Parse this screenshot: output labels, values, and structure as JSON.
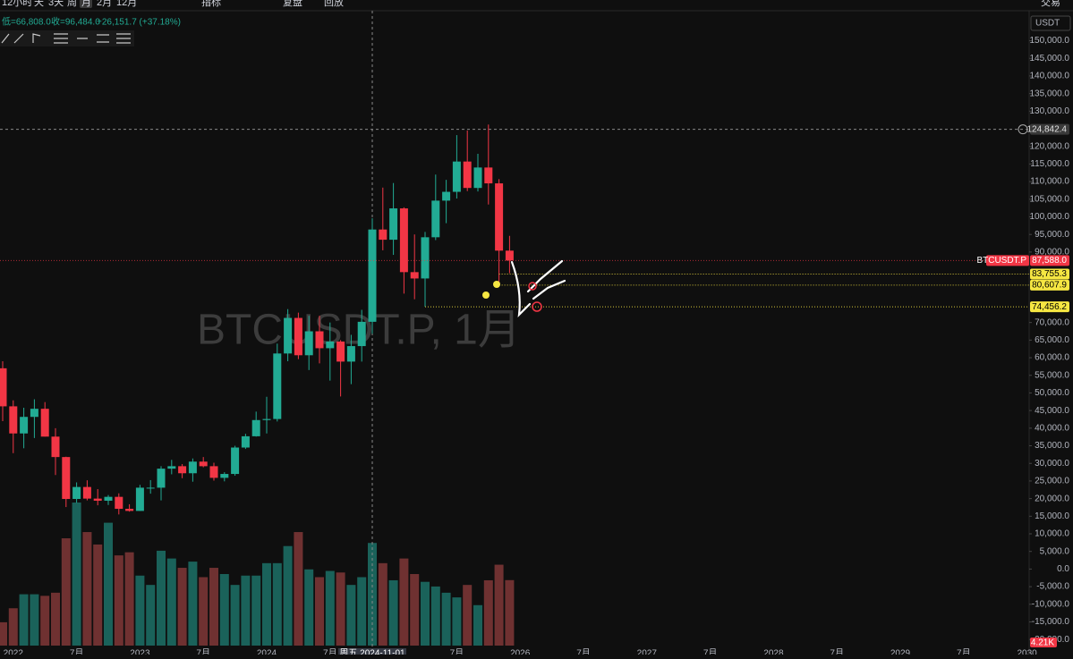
{
  "toolbar": {
    "intervals": [
      "12小时",
      "天",
      "3天",
      "周",
      "月",
      "2月",
      "12月"
    ],
    "indicators": "指标",
    "review": "复盘",
    "playback": "回放",
    "trade": "交易"
  },
  "legend": {
    "low": "低=66,808.0",
    "close": "收=96,484.0",
    "change": "+26,151.7 (+37.18%)"
  },
  "chart_data": {
    "type": "candlestick",
    "watermark": "BTCUSDT.P, 1月",
    "currency": "USDT",
    "x": [
      "2021-12",
      "2022-01",
      "2022-02",
      "2022-03",
      "2022-04",
      "2022-05",
      "2022-06",
      "2022-07",
      "2022-08",
      "2022-09",
      "2022-10",
      "2022-11",
      "2022-12",
      "2023-01",
      "2023-02",
      "2023-03",
      "2023-04",
      "2023-05",
      "2023-06",
      "2023-07",
      "2023-08",
      "2023-09",
      "2023-10",
      "2023-11",
      "2023-12",
      "2024-01",
      "2024-02",
      "2024-03",
      "2024-04",
      "2024-05",
      "2024-06",
      "2024-07",
      "2024-08",
      "2024-09",
      "2024-10",
      "2024-11",
      "2024-12",
      "2025-01",
      "2025-02",
      "2025-03",
      "2025-04",
      "2025-05",
      "2025-06",
      "2025-07",
      "2025-08",
      "2025-09",
      "2025-10",
      "2025-11",
      "2025-12"
    ],
    "open": [
      57000,
      46200,
      38500,
      43200,
      45500,
      37600,
      31800,
      19900,
      23300,
      20000,
      19400,
      20500,
      17100,
      16500,
      23100,
      23100,
      28500,
      29200,
      27200,
      30500,
      29200,
      25900,
      27000,
      34500,
      37700,
      42300,
      42600,
      61200,
      71300,
      60700,
      67500,
      62700,
      64600,
      58900,
      63300,
      70200,
      96400,
      93500,
      102400,
      84300,
      82500,
      94200,
      104600,
      107100,
      115700,
      108200,
      114000,
      109500,
      90400
    ],
    "high": [
      59000,
      47900,
      45800,
      48200,
      47400,
      40000,
      31900,
      24600,
      25200,
      22700,
      21000,
      21500,
      18400,
      23900,
      25250,
      29200,
      31000,
      29800,
      31400,
      31800,
      30200,
      27500,
      35000,
      38400,
      44700,
      48900,
      64000,
      73800,
      72800,
      71900,
      71900,
      70000,
      65000,
      66500,
      73600,
      99600,
      108300,
      109600,
      102700,
      95000,
      95700,
      112000,
      110500,
      123200,
      124500,
      117900,
      126200,
      110700,
      94600
    ],
    "low": [
      42000,
      32900,
      34300,
      37200,
      37600,
      26700,
      17600,
      18800,
      19500,
      18100,
      18200,
      15500,
      16300,
      16500,
      21400,
      19500,
      26900,
      25800,
      24800,
      28900,
      25100,
      24900,
      26500,
      34100,
      37600,
      38500,
      41900,
      59000,
      59600,
      56500,
      58400,
      53500,
      49000,
      52500,
      58900,
      66800,
      90500,
      89200,
      78200,
      76600,
      74500,
      93400,
      98200,
      105200,
      107300,
      107200,
      103500,
      80600,
      84000
    ],
    "close": [
      46200,
      38500,
      43200,
      45500,
      37600,
      31800,
      19900,
      23300,
      20000,
      19400,
      20500,
      17100,
      16500,
      23100,
      23100,
      28500,
      29200,
      27200,
      30500,
      29200,
      25900,
      27000,
      34500,
      37700,
      42300,
      42600,
      61200,
      71300,
      60700,
      67500,
      62700,
      64600,
      58900,
      63300,
      70200,
      96400,
      93500,
      102400,
      84300,
      82500,
      94200,
      104600,
      107100,
      115700,
      108200,
      114000,
      109500,
      90400,
      87600
    ],
    "volume": [
      1.5,
      2.4,
      3.3,
      3.3,
      3.2,
      3.4,
      6.9,
      9.2,
      7.3,
      6.5,
      7.9,
      5.8,
      6.0,
      4.5,
      3.9,
      6.1,
      5.6,
      5.0,
      5.4,
      4.4,
      5.0,
      4.6,
      3.9,
      4.5,
      4.5,
      5.3,
      5.3,
      6.4,
      7.3,
      4.9,
      4.4,
      4.8,
      4.7,
      3.9,
      4.4,
      6.6,
      5.3,
      4.2,
      5.6,
      4.6,
      4.1,
      3.8,
      3.4,
      3.1,
      3.9,
      2.6,
      4.2,
      5.2,
      4.21
    ],
    "volume_label": "4.21K",
    "up_color": "#22ab94",
    "down_color": "#f23645",
    "ylim": [
      -23000,
      157500
    ],
    "yticks": [
      {
        "value": -20000,
        "label": "-20,000.0"
      },
      {
        "value": -15000,
        "label": "-15,000.0"
      },
      {
        "value": -10000,
        "label": "-10,000.0"
      },
      {
        "value": -5000,
        "label": "-5,000.0"
      },
      {
        "value": 0,
        "label": "0.0"
      },
      {
        "value": 5000,
        "label": "5,000.0"
      },
      {
        "value": 10000,
        "label": "10,000.0"
      },
      {
        "value": 15000,
        "label": "15,000.0"
      },
      {
        "value": 20000,
        "label": "20,000.0"
      },
      {
        "value": 25000,
        "label": "25,000.0"
      },
      {
        "value": 30000,
        "label": "30,000.0"
      },
      {
        "value": 35000,
        "label": "35,000.0"
      },
      {
        "value": 40000,
        "label": "40,000.0"
      },
      {
        "value": 45000,
        "label": "45,000.0"
      },
      {
        "value": 50000,
        "label": "50,000.0"
      },
      {
        "value": 55000,
        "label": "55,000.0"
      },
      {
        "value": 60000,
        "label": "60,000.0"
      },
      {
        "value": 65000,
        "label": "65,000.0"
      },
      {
        "value": 70000,
        "label": "70,000.0"
      },
      {
        "value": 90000,
        "label": "90,000.0"
      },
      {
        "value": 95000,
        "label": "95,000.0"
      },
      {
        "value": 100000,
        "label": "100,000.0"
      },
      {
        "value": 105000,
        "label": "105,000.0"
      },
      {
        "value": 110000,
        "label": "110,000.0"
      },
      {
        "value": 115000,
        "label": "115,000.0"
      },
      {
        "value": 120000,
        "label": "120,000.0"
      },
      {
        "value": 130000,
        "label": "130,000.0"
      },
      {
        "value": 135000,
        "label": "135,000.0"
      },
      {
        "value": 140000,
        "label": "140,000.0"
      },
      {
        "value": 145000,
        "label": "145,000.0"
      },
      {
        "value": 150000,
        "label": "150,000.0"
      }
    ],
    "xlabels": [
      {
        "value": "2022-01",
        "label": "2022"
      },
      {
        "value": "2022-07",
        "label": "7月"
      },
      {
        "value": "2023-01",
        "label": "2023"
      },
      {
        "value": "2023-07",
        "label": "7月"
      },
      {
        "value": "2024-01",
        "label": "2024"
      },
      {
        "value": "2024-07",
        "label": "7月"
      },
      {
        "value": "2025-07",
        "label": "7月"
      },
      {
        "value": "2026-01",
        "label": "2026"
      },
      {
        "value": "2026-07",
        "label": "7月"
      },
      {
        "value": "2027-01",
        "label": "2027"
      },
      {
        "value": "2027-07",
        "label": "7月"
      },
      {
        "value": "2028-01",
        "label": "2028"
      },
      {
        "value": "2028-07",
        "label": "7月"
      },
      {
        "value": "2029-01",
        "label": "2029"
      },
      {
        "value": "2029-07",
        "label": "7月"
      },
      {
        "value": "2030-01",
        "label": "2030"
      }
    ],
    "crosshair": {
      "value": "2024-11",
      "label": "周五 2024-11-01"
    },
    "high_line": {
      "value": 124842.4,
      "label": "124,842.4"
    },
    "last_price": {
      "value": 87588.0,
      "label": "87,588.0",
      "name": "BTCUSDT.P"
    },
    "levels": [
      {
        "value": 83755.3,
        "label": "83,755.3",
        "from": "2025-11"
      },
      {
        "value": 80607.9,
        "label": "80,607.9",
        "from": "2025-11"
      },
      {
        "value": 74456.2,
        "label": "74,456.2",
        "from": "2025-04"
      }
    ]
  }
}
